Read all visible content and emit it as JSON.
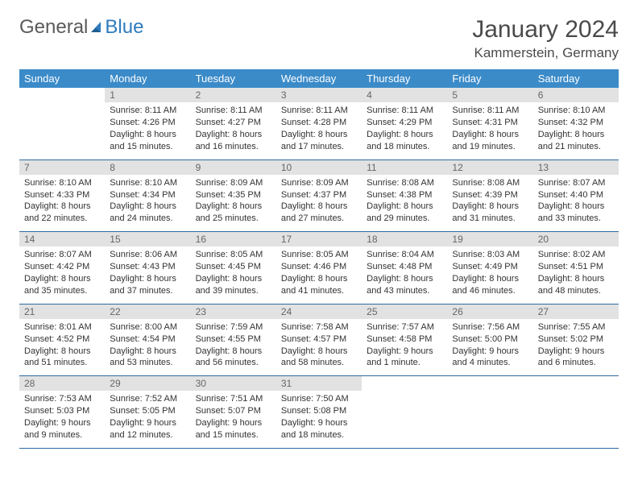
{
  "logo": {
    "part1": "General",
    "part2": "Blue"
  },
  "title": "January 2024",
  "location": "Kammerstein, Germany",
  "dayNames": [
    "Sunday",
    "Monday",
    "Tuesday",
    "Wednesday",
    "Thursday",
    "Friday",
    "Saturday"
  ],
  "colors": {
    "headerBg": "#3b8bc9",
    "dayNumBg": "#e2e2e2",
    "ruleColor": "#2e6ca3",
    "logoBlue": "#2f7bbf"
  },
  "weeks": [
    [
      null,
      {
        "n": "1",
        "sr": "Sunrise: 8:11 AM",
        "ss": "Sunset: 4:26 PM",
        "d1": "Daylight: 8 hours",
        "d2": "and 15 minutes."
      },
      {
        "n": "2",
        "sr": "Sunrise: 8:11 AM",
        "ss": "Sunset: 4:27 PM",
        "d1": "Daylight: 8 hours",
        "d2": "and 16 minutes."
      },
      {
        "n": "3",
        "sr": "Sunrise: 8:11 AM",
        "ss": "Sunset: 4:28 PM",
        "d1": "Daylight: 8 hours",
        "d2": "and 17 minutes."
      },
      {
        "n": "4",
        "sr": "Sunrise: 8:11 AM",
        "ss": "Sunset: 4:29 PM",
        "d1": "Daylight: 8 hours",
        "d2": "and 18 minutes."
      },
      {
        "n": "5",
        "sr": "Sunrise: 8:11 AM",
        "ss": "Sunset: 4:31 PM",
        "d1": "Daylight: 8 hours",
        "d2": "and 19 minutes."
      },
      {
        "n": "6",
        "sr": "Sunrise: 8:10 AM",
        "ss": "Sunset: 4:32 PM",
        "d1": "Daylight: 8 hours",
        "d2": "and 21 minutes."
      }
    ],
    [
      {
        "n": "7",
        "sr": "Sunrise: 8:10 AM",
        "ss": "Sunset: 4:33 PM",
        "d1": "Daylight: 8 hours",
        "d2": "and 22 minutes."
      },
      {
        "n": "8",
        "sr": "Sunrise: 8:10 AM",
        "ss": "Sunset: 4:34 PM",
        "d1": "Daylight: 8 hours",
        "d2": "and 24 minutes."
      },
      {
        "n": "9",
        "sr": "Sunrise: 8:09 AM",
        "ss": "Sunset: 4:35 PM",
        "d1": "Daylight: 8 hours",
        "d2": "and 25 minutes."
      },
      {
        "n": "10",
        "sr": "Sunrise: 8:09 AM",
        "ss": "Sunset: 4:37 PM",
        "d1": "Daylight: 8 hours",
        "d2": "and 27 minutes."
      },
      {
        "n": "11",
        "sr": "Sunrise: 8:08 AM",
        "ss": "Sunset: 4:38 PM",
        "d1": "Daylight: 8 hours",
        "d2": "and 29 minutes."
      },
      {
        "n": "12",
        "sr": "Sunrise: 8:08 AM",
        "ss": "Sunset: 4:39 PM",
        "d1": "Daylight: 8 hours",
        "d2": "and 31 minutes."
      },
      {
        "n": "13",
        "sr": "Sunrise: 8:07 AM",
        "ss": "Sunset: 4:40 PM",
        "d1": "Daylight: 8 hours",
        "d2": "and 33 minutes."
      }
    ],
    [
      {
        "n": "14",
        "sr": "Sunrise: 8:07 AM",
        "ss": "Sunset: 4:42 PM",
        "d1": "Daylight: 8 hours",
        "d2": "and 35 minutes."
      },
      {
        "n": "15",
        "sr": "Sunrise: 8:06 AM",
        "ss": "Sunset: 4:43 PM",
        "d1": "Daylight: 8 hours",
        "d2": "and 37 minutes."
      },
      {
        "n": "16",
        "sr": "Sunrise: 8:05 AM",
        "ss": "Sunset: 4:45 PM",
        "d1": "Daylight: 8 hours",
        "d2": "and 39 minutes."
      },
      {
        "n": "17",
        "sr": "Sunrise: 8:05 AM",
        "ss": "Sunset: 4:46 PM",
        "d1": "Daylight: 8 hours",
        "d2": "and 41 minutes."
      },
      {
        "n": "18",
        "sr": "Sunrise: 8:04 AM",
        "ss": "Sunset: 4:48 PM",
        "d1": "Daylight: 8 hours",
        "d2": "and 43 minutes."
      },
      {
        "n": "19",
        "sr": "Sunrise: 8:03 AM",
        "ss": "Sunset: 4:49 PM",
        "d1": "Daylight: 8 hours",
        "d2": "and 46 minutes."
      },
      {
        "n": "20",
        "sr": "Sunrise: 8:02 AM",
        "ss": "Sunset: 4:51 PM",
        "d1": "Daylight: 8 hours",
        "d2": "and 48 minutes."
      }
    ],
    [
      {
        "n": "21",
        "sr": "Sunrise: 8:01 AM",
        "ss": "Sunset: 4:52 PM",
        "d1": "Daylight: 8 hours",
        "d2": "and 51 minutes."
      },
      {
        "n": "22",
        "sr": "Sunrise: 8:00 AM",
        "ss": "Sunset: 4:54 PM",
        "d1": "Daylight: 8 hours",
        "d2": "and 53 minutes."
      },
      {
        "n": "23",
        "sr": "Sunrise: 7:59 AM",
        "ss": "Sunset: 4:55 PM",
        "d1": "Daylight: 8 hours",
        "d2": "and 56 minutes."
      },
      {
        "n": "24",
        "sr": "Sunrise: 7:58 AM",
        "ss": "Sunset: 4:57 PM",
        "d1": "Daylight: 8 hours",
        "d2": "and 58 minutes."
      },
      {
        "n": "25",
        "sr": "Sunrise: 7:57 AM",
        "ss": "Sunset: 4:58 PM",
        "d1": "Daylight: 9 hours",
        "d2": "and 1 minute."
      },
      {
        "n": "26",
        "sr": "Sunrise: 7:56 AM",
        "ss": "Sunset: 5:00 PM",
        "d1": "Daylight: 9 hours",
        "d2": "and 4 minutes."
      },
      {
        "n": "27",
        "sr": "Sunrise: 7:55 AM",
        "ss": "Sunset: 5:02 PM",
        "d1": "Daylight: 9 hours",
        "d2": "and 6 minutes."
      }
    ],
    [
      {
        "n": "28",
        "sr": "Sunrise: 7:53 AM",
        "ss": "Sunset: 5:03 PM",
        "d1": "Daylight: 9 hours",
        "d2": "and 9 minutes."
      },
      {
        "n": "29",
        "sr": "Sunrise: 7:52 AM",
        "ss": "Sunset: 5:05 PM",
        "d1": "Daylight: 9 hours",
        "d2": "and 12 minutes."
      },
      {
        "n": "30",
        "sr": "Sunrise: 7:51 AM",
        "ss": "Sunset: 5:07 PM",
        "d1": "Daylight: 9 hours",
        "d2": "and 15 minutes."
      },
      {
        "n": "31",
        "sr": "Sunrise: 7:50 AM",
        "ss": "Sunset: 5:08 PM",
        "d1": "Daylight: 9 hours",
        "d2": "and 18 minutes."
      },
      null,
      null,
      null
    ]
  ]
}
